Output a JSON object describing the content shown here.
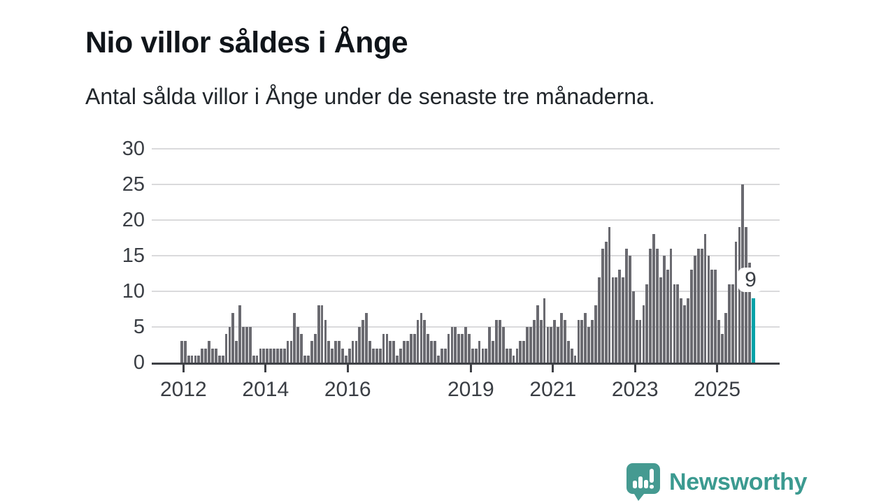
{
  "header": {
    "title": "Nio villor såldes i Ånge",
    "subtitle": "Antal sålda villor i Ånge under de senaste tre månaderna."
  },
  "chart_data": {
    "type": "bar",
    "title": "Nio villor såldes i Ånge",
    "subtitle": "Antal sålda villor i Ånge under de senaste tre månaderna.",
    "xlabel": "",
    "ylabel": "",
    "ylim": [
      0,
      30
    ],
    "grid": true,
    "legend": false,
    "y_ticks": [
      0,
      5,
      10,
      15,
      20,
      25,
      30
    ],
    "x_tick_years": [
      2012,
      2014,
      2016,
      2019,
      2021,
      2023,
      2025
    ],
    "start_month": "2011-12",
    "end_month": "2025-11",
    "unit": "sålda villor per rullande tremånadersperiod",
    "values": [
      3,
      3,
      1,
      1,
      1,
      1,
      2,
      2,
      3,
      2,
      2,
      1,
      1,
      4,
      5,
      7,
      3,
      8,
      5,
      5,
      5,
      1,
      1,
      2,
      2,
      2,
      2,
      2,
      2,
      2,
      2,
      3,
      3,
      7,
      5,
      4,
      1,
      1,
      3,
      4,
      8,
      8,
      6,
      3,
      2,
      3,
      3,
      2,
      1,
      2,
      3,
      3,
      5,
      6,
      7,
      3,
      2,
      2,
      2,
      4,
      4,
      3,
      3,
      1,
      2,
      3,
      3,
      4,
      4,
      6,
      7,
      6,
      4,
      3,
      3,
      1,
      2,
      2,
      4,
      5,
      5,
      4,
      4,
      5,
      4,
      2,
      2,
      3,
      2,
      2,
      5,
      3,
      6,
      6,
      5,
      2,
      2,
      1,
      2,
      3,
      3,
      5,
      5,
      6,
      8,
      6,
      9,
      5,
      5,
      6,
      5,
      7,
      6,
      3,
      2,
      1,
      6,
      6,
      7,
      5,
      6,
      8,
      12,
      16,
      17,
      19,
      12,
      12,
      13,
      12,
      16,
      15,
      10,
      6,
      6,
      8,
      11,
      16,
      18,
      16,
      12,
      15,
      13,
      16,
      11,
      11,
      9,
      8,
      9,
      13,
      15,
      16,
      16,
      18,
      15,
      13,
      13,
      6,
      4,
      7,
      11,
      11,
      17,
      19,
      25,
      19,
      14,
      9
    ],
    "highlight_last": true,
    "last_value": 9,
    "bar_color": "#6a6a70",
    "highlight_color": "#00a2a8",
    "gridline_color": "#dadadc",
    "axis_color": "#3f4146"
  },
  "annotation": {
    "label": "9"
  },
  "footer": {
    "brand": "Newsworthy",
    "brand_color": "#3b9a90",
    "logo_color": "#459a91"
  }
}
